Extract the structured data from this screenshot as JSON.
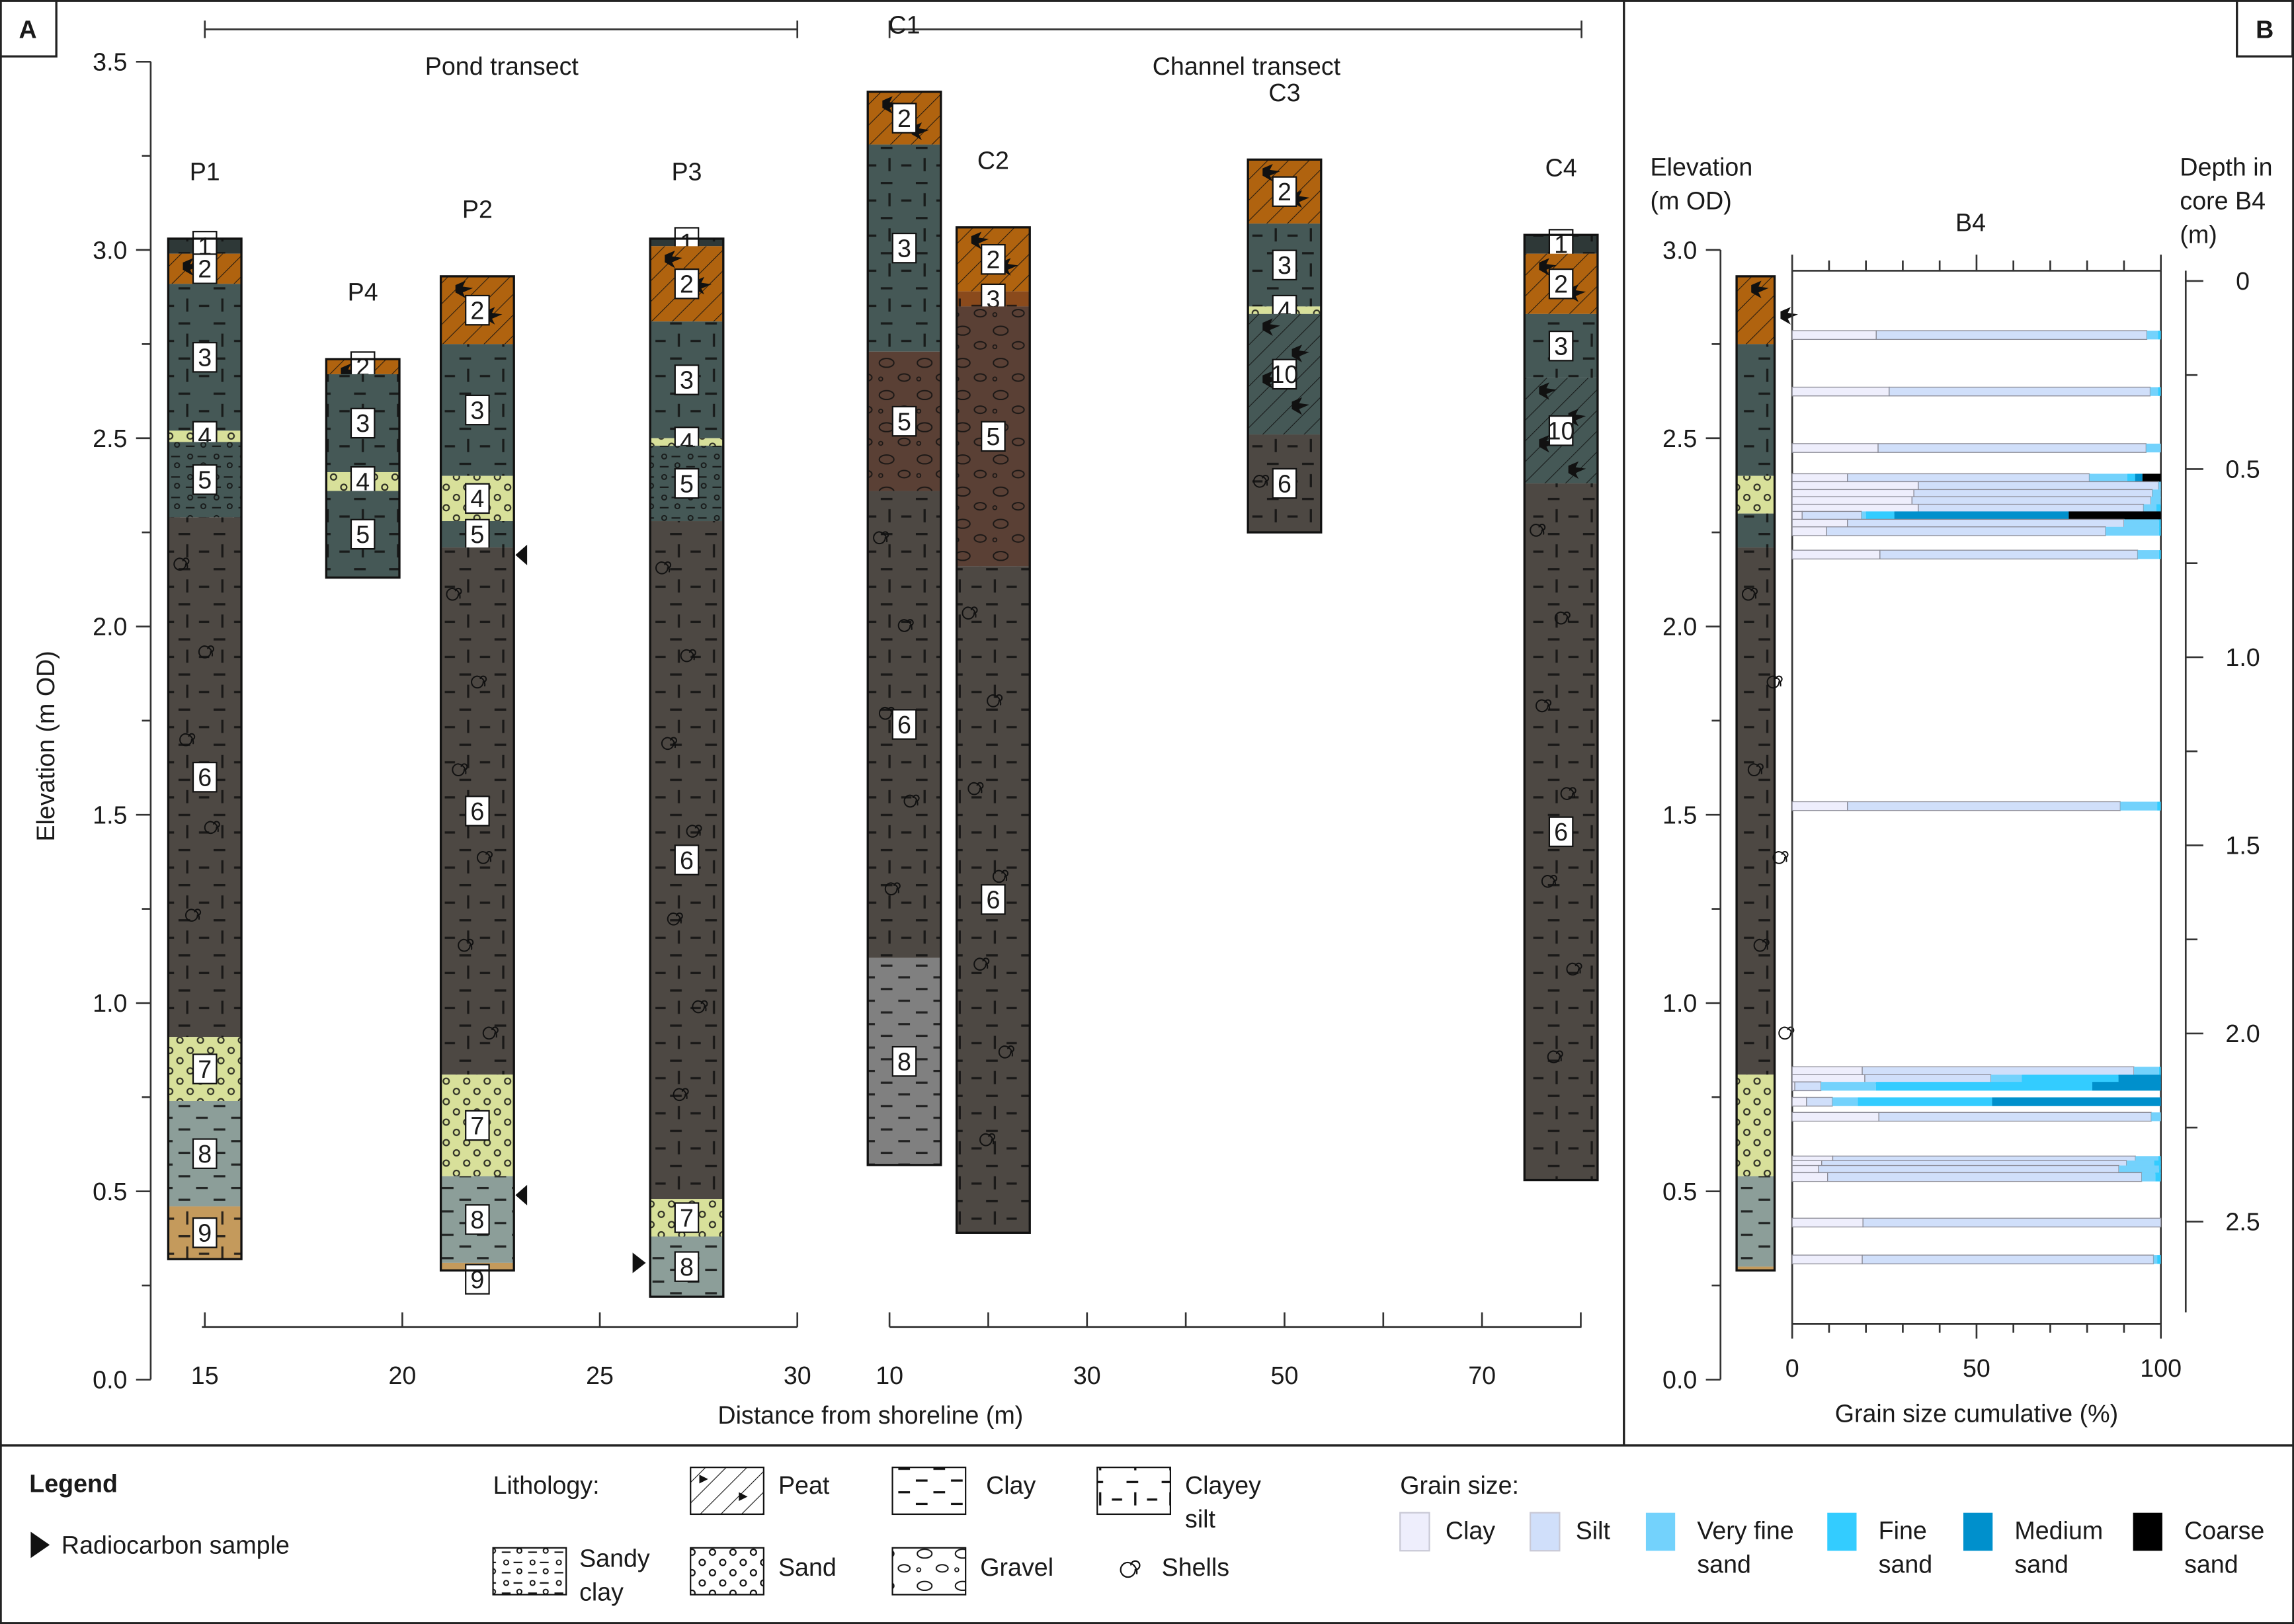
{
  "panels": {
    "a": "A",
    "b": "B"
  },
  "transects": {
    "pond": "Pond transect",
    "channel": "Channel transect"
  },
  "axes": {
    "elevation_label": "Elevation (m OD)",
    "elevation_ticks": [
      "3.5",
      "3.0",
      "2.5",
      "2.0",
      "1.5",
      "1.0",
      "0.5",
      "0.0"
    ],
    "distance_label": "Distance from shoreline (m)",
    "pond_ticks": [
      "15",
      "20",
      "25",
      "30"
    ],
    "channel_ticks": [
      "10",
      "30",
      "50",
      "70"
    ],
    "b_elevation_title": [
      "Elevation",
      "(m OD)"
    ],
    "b_elevation_ticks": [
      "3.0",
      "2.5",
      "2.0",
      "1.5",
      "1.0",
      "0.5",
      "0.0"
    ],
    "depth_title": [
      "Depth in",
      "core B4",
      "(m)"
    ],
    "depth_ticks": [
      "0",
      "0.5",
      "1.0",
      "1.5",
      "2.0",
      "2.5"
    ],
    "grain_title": "B4",
    "grain_label": "Grain size cumulative (%)",
    "grain_ticks": [
      "0",
      "50",
      "100"
    ]
  },
  "colors": {
    "units": {
      "1": "#2e3837",
      "2": "#b0630f",
      "3": "#455856",
      "4": "#d8e09a",
      "5": "#455856",
      "6": "#4d4843",
      "7": "#d8e09a",
      "8": "#8c9e99",
      "9": "#c49a5c",
      "10": "#455856"
    },
    "grain": {
      "clay": "#eeeefc",
      "silt": "#d0dffa",
      "very_fine_sand": "#73d2fc",
      "fine_sand": "#33ccff",
      "medium_sand": "#0090cc",
      "coarse_sand": "#000000"
    }
  },
  "chart_data": [
    {
      "type": "stratigraphic-columns",
      "title": "A",
      "ylabel": "Elevation (m OD)",
      "ylim": [
        0,
        3.5
      ],
      "xlabel": "Distance from shoreline (m)",
      "cores": [
        {
          "name": "P1",
          "transect": "pond",
          "distance": 15,
          "layers": [
            {
              "unit": "1",
              "lith": "clayey-silt",
              "top": 3.03,
              "bottom": 2.99
            },
            {
              "unit": "2",
              "lith": "peat",
              "top": 2.99,
              "bottom": 2.91
            },
            {
              "unit": "3",
              "lith": "clayey-silt",
              "top": 2.91,
              "bottom": 2.52
            },
            {
              "unit": "4",
              "lith": "sand",
              "top": 2.52,
              "bottom": 2.49
            },
            {
              "unit": "5",
              "lith": "sandy-clay",
              "top": 2.49,
              "bottom": 2.29
            },
            {
              "unit": "6",
              "lith": "clayey-silt",
              "shells": true,
              "top": 2.29,
              "bottom": 0.91
            },
            {
              "unit": "7",
              "lith": "sand",
              "top": 0.91,
              "bottom": 0.74
            },
            {
              "unit": "8",
              "lith": "clay",
              "top": 0.74,
              "bottom": 0.46
            },
            {
              "unit": "9",
              "lith": "clayey-silt",
              "top": 0.46,
              "bottom": 0.32
            }
          ]
        },
        {
          "name": "P4",
          "transect": "pond",
          "distance": 19,
          "layers": [
            {
              "unit": "2",
              "lith": "peat",
              "top": 2.71,
              "bottom": 2.67
            },
            {
              "unit": "3",
              "lith": "clayey-silt",
              "top": 2.67,
              "bottom": 2.41
            },
            {
              "unit": "4",
              "lith": "sand",
              "top": 2.41,
              "bottom": 2.36
            },
            {
              "unit": "5",
              "lith": "clayey-silt",
              "top": 2.36,
              "bottom": 2.13
            }
          ]
        },
        {
          "name": "P2",
          "transect": "pond",
          "distance": 21.9,
          "radiocarbon": [
            2.19,
            0.49
          ],
          "layers": [
            {
              "unit": "2",
              "lith": "peat",
              "top": 2.93,
              "bottom": 2.75
            },
            {
              "unit": "3",
              "lith": "clayey-silt",
              "top": 2.75,
              "bottom": 2.4
            },
            {
              "unit": "4",
              "lith": "sand",
              "top": 2.4,
              "bottom": 2.28
            },
            {
              "unit": "5",
              "lith": "clayey-silt",
              "top": 2.28,
              "bottom": 2.21
            },
            {
              "unit": "6",
              "lith": "clayey-silt",
              "shells": true,
              "top": 2.21,
              "bottom": 0.81
            },
            {
              "unit": "7",
              "lith": "sand",
              "top": 0.81,
              "bottom": 0.54
            },
            {
              "unit": "8",
              "lith": "clay",
              "top": 0.54,
              "bottom": 0.31
            },
            {
              "unit": "9",
              "lith": "clayey-silt",
              "top": 0.31,
              "bottom": 0.29
            }
          ]
        },
        {
          "name": "P3",
          "transect": "pond",
          "distance": 27.2,
          "radiocarbon": [
            0.31
          ],
          "layers": [
            {
              "unit": "1",
              "lith": "clayey-silt",
              "top": 3.03,
              "bottom": 3.01
            },
            {
              "unit": "2",
              "lith": "peat",
              "top": 3.01,
              "bottom": 2.81
            },
            {
              "unit": "3",
              "lith": "clayey-silt",
              "top": 2.81,
              "bottom": 2.5
            },
            {
              "unit": "4",
              "lith": "sand",
              "top": 2.5,
              "bottom": 2.48
            },
            {
              "unit": "5",
              "lith": "sandy-clay",
              "top": 2.48,
              "bottom": 2.28
            },
            {
              "unit": "6",
              "lith": "clayey-silt",
              "shells": true,
              "top": 2.28,
              "bottom": 0.48
            },
            {
              "unit": "7",
              "lith": "sand",
              "top": 0.48,
              "bottom": 0.38
            },
            {
              "unit": "8",
              "lith": "clay",
              "top": 0.38,
              "bottom": 0.22
            }
          ]
        },
        {
          "name": "C1",
          "transect": "channel",
          "distance": 11.5,
          "layers": [
            {
              "unit": "2",
              "lith": "peat",
              "top": 3.42,
              "bottom": 3.28
            },
            {
              "unit": "3",
              "lith": "clayey-silt",
              "top": 3.28,
              "bottom": 2.73
            },
            {
              "unit": "5",
              "lith": "gravel",
              "color": "#5a4035",
              "top": 2.73,
              "bottom": 2.36
            },
            {
              "unit": "6",
              "lith": "clayey-silt",
              "shells": true,
              "top": 2.36,
              "bottom": 1.12
            },
            {
              "unit": "8",
              "lith": "clay",
              "color": "#808080",
              "top": 1.12,
              "bottom": 0.57
            }
          ]
        },
        {
          "name": "C2",
          "transect": "channel",
          "distance": 20.5,
          "layers": [
            {
              "unit": "2",
              "lith": "peat",
              "top": 3.06,
              "bottom": 2.89
            },
            {
              "unit": "3",
              "lith": "clayey-silt",
              "color": "#8a4a1c",
              "top": 2.89,
              "bottom": 2.85
            },
            {
              "unit": "5",
              "lith": "gravel",
              "color": "#5a4035",
              "top": 2.85,
              "bottom": 2.16
            },
            {
              "unit": "6",
              "lith": "clayey-silt",
              "shells": true,
              "top": 2.16,
              "bottom": 0.39
            }
          ]
        },
        {
          "name": "C3",
          "transect": "channel",
          "distance": 50,
          "layers": [
            {
              "unit": "2",
              "lith": "peat",
              "top": 3.24,
              "bottom": 3.07
            },
            {
              "unit": "3",
              "lith": "clayey-silt",
              "top": 3.07,
              "bottom": 2.85
            },
            {
              "unit": "4",
              "lith": "sand",
              "top": 2.85,
              "bottom": 2.83
            },
            {
              "unit": "10",
              "lith": "peat-silt",
              "top": 2.83,
              "bottom": 2.51
            },
            {
              "unit": "6",
              "lith": "clayey-silt",
              "shells": true,
              "top": 2.51,
              "bottom": 2.25
            }
          ]
        },
        {
          "name": "C4",
          "transect": "channel",
          "distance": 78,
          "layers": [
            {
              "unit": "1",
              "lith": "clayey-silt",
              "top": 3.04,
              "bottom": 2.99
            },
            {
              "unit": "2",
              "lith": "peat",
              "top": 2.99,
              "bottom": 2.83
            },
            {
              "unit": "3",
              "lith": "clayey-silt",
              "top": 2.83,
              "bottom": 2.66
            },
            {
              "unit": "10",
              "lith": "peat-silt",
              "top": 2.66,
              "bottom": 2.38
            },
            {
              "unit": "6",
              "lith": "clayey-silt",
              "shells": true,
              "top": 2.38,
              "bottom": 0.53
            }
          ]
        }
      ]
    },
    {
      "type": "bar",
      "title": "B4",
      "xlabel": "Grain size cumulative (%)",
      "xlim": [
        0,
        100
      ],
      "ylabel": "Elevation (m OD)",
      "ylim": [
        0,
        3.5
      ],
      "core_b4_layers": [
        {
          "unit": "2",
          "lith": "peat",
          "top": 2.93,
          "bottom": 2.75
        },
        {
          "unit": "3",
          "lith": "clayey-silt",
          "top": 2.75,
          "bottom": 2.4
        },
        {
          "unit": "7",
          "lith": "sand",
          "top": 2.4,
          "bottom": 2.3
        },
        {
          "unit": "3",
          "lith": "clayey-silt",
          "top": 2.3,
          "bottom": 2.21
        },
        {
          "unit": "6",
          "lith": "clayey-silt",
          "shells": true,
          "top": 2.21,
          "bottom": 0.81
        },
        {
          "unit": "7",
          "lith": "sand",
          "top": 0.81,
          "bottom": 0.54
        },
        {
          "unit": "8",
          "lith": "clay",
          "top": 0.54,
          "bottom": 0.3
        },
        {
          "unit": "9",
          "lith": "clayey-silt",
          "top": 0.3,
          "bottom": 0.29
        }
      ],
      "series_names": [
        "Clay",
        "Silt",
        "Very fine sand",
        "Fine sand",
        "Medium sand",
        "Coarse sand"
      ],
      "samples_cumulative": [
        {
          "elev": 2.774,
          "cum": [
            22.8,
            96.2,
            99.2,
            100,
            100,
            100
          ]
        },
        {
          "elev": 2.624,
          "cum": [
            26.3,
            97.1,
            99.2,
            100,
            100,
            100
          ]
        },
        {
          "elev": 2.474,
          "cum": [
            23.3,
            96.0,
            100,
            100,
            100,
            100
          ]
        },
        {
          "elev": 2.394,
          "cum": [
            15.0,
            80.6,
            90.9,
            93.0,
            95.0,
            100
          ]
        },
        {
          "elev": 2.373,
          "cum": [
            34.2,
            99.4,
            100,
            100,
            100,
            100
          ]
        },
        {
          "elev": 2.352,
          "cum": [
            33.0,
            97.7,
            100,
            100,
            100,
            100
          ]
        },
        {
          "elev": 2.333,
          "cum": [
            32.5,
            97.3,
            100,
            100,
            100,
            100
          ]
        },
        {
          "elev": 2.313,
          "cum": [
            34.2,
            95.3,
            98.8,
            100,
            100,
            100
          ]
        },
        {
          "elev": 2.294,
          "cum": [
            2.7,
            18.8,
            20.0,
            27.7,
            75.0,
            100
          ]
        },
        {
          "elev": 2.273,
          "cum": [
            15.0,
            90.0,
            99.5,
            100,
            100,
            100
          ]
        },
        {
          "elev": 2.253,
          "cum": [
            9.3,
            85.0,
            99.5,
            100,
            100,
            100
          ]
        },
        {
          "elev": 2.191,
          "cum": [
            23.8,
            93.7,
            99.5,
            100,
            100,
            100
          ]
        },
        {
          "elev": 1.523,
          "cum": [
            15.0,
            89.0,
            99.0,
            100,
            100,
            100
          ]
        },
        {
          "elev": 0.819,
          "cum": [
            19.0,
            92.7,
            99.5,
            100,
            100,
            100
          ]
        },
        {
          "elev": 0.798,
          "cum": [
            19.7,
            53.9,
            62.3,
            88.5,
            100,
            100
          ]
        },
        {
          "elev": 0.779,
          "cum": [
            0.7,
            7.8,
            22.7,
            81.4,
            100,
            100
          ]
        },
        {
          "elev": 0.738,
          "cum": [
            3.9,
            10.9,
            17.8,
            54.2,
            100,
            100
          ]
        },
        {
          "elev": 0.698,
          "cum": [
            23.5,
            97.4,
            100,
            100,
            100,
            100
          ]
        },
        {
          "elev": 0.582,
          "cum": [
            11.0,
            93.1,
            99.3,
            100,
            100,
            100
          ]
        },
        {
          "elev": 0.57,
          "cum": [
            8.0,
            90.7,
            98.2,
            100,
            100,
            100
          ]
        },
        {
          "elev": 0.557,
          "cum": [
            7.2,
            88.6,
            99.5,
            100,
            100,
            100
          ]
        },
        {
          "elev": 0.538,
          "cum": [
            9.6,
            94.8,
            98.5,
            100,
            100,
            100
          ]
        },
        {
          "elev": 0.417,
          "cum": [
            19.2,
            100,
            100,
            100,
            100,
            100
          ]
        },
        {
          "elev": 0.319,
          "cum": [
            19.0,
            98.0,
            99.0,
            100,
            100,
            100
          ]
        }
      ]
    }
  ],
  "legend": {
    "title": "Legend",
    "radiocarbon": "Radiocarbon sample",
    "lithology_title": "Lithology:",
    "lithology": {
      "peat": "Peat",
      "clay": "Clay",
      "clayey_silt": [
        "Clayey",
        "silt"
      ],
      "sandy_clay": [
        "Sandy",
        "clay"
      ],
      "sand": "Sand",
      "gravel": "Gravel",
      "shells": "Shells"
    },
    "grain_title": "Grain size:",
    "grain": [
      {
        "key": "clay",
        "label": [
          "Clay"
        ]
      },
      {
        "key": "silt",
        "label": [
          "Silt"
        ]
      },
      {
        "key": "very_fine_sand",
        "label": [
          "Very fine",
          "sand"
        ]
      },
      {
        "key": "fine_sand",
        "label": [
          "Fine",
          "sand"
        ]
      },
      {
        "key": "medium_sand",
        "label": [
          "Medium",
          "sand"
        ]
      },
      {
        "key": "coarse_sand",
        "label": [
          "Coarse",
          "sand"
        ]
      }
    ]
  }
}
